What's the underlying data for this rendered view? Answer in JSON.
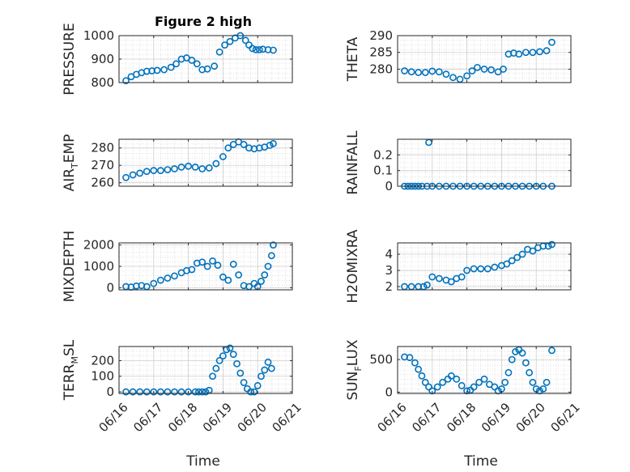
{
  "figure_title": "Figure 2 high",
  "x_tick_labels": [
    "06/16",
    "06/17",
    "06/18",
    "06/19",
    "06/20",
    "06/21"
  ],
  "x_label": "Time",
  "marker_color": "#0072BD",
  "chart_data": [
    {
      "type": "scatter",
      "name": "PRESSURE",
      "ylabel": {
        "main": "PRESSURE",
        "sub": ""
      },
      "title": "Figure 2 high",
      "xlim": [
        0,
        5
      ],
      "ylim": [
        800,
        1000
      ],
      "yticks": [
        800,
        900,
        1000
      ],
      "ytick_labels": [
        "800",
        "900",
        "1000"
      ],
      "grid": true,
      "x": [
        0.2,
        0.35,
        0.5,
        0.65,
        0.8,
        0.95,
        1.1,
        1.3,
        1.5,
        1.65,
        1.8,
        1.95,
        2.1,
        2.25,
        2.4,
        2.55,
        2.75,
        2.9,
        3.05,
        3.2,
        3.35,
        3.5,
        3.65,
        3.75,
        3.85,
        3.95,
        4.05,
        4.15,
        4.3,
        4.45
      ],
      "y": [
        808,
        825,
        835,
        842,
        848,
        850,
        852,
        855,
        865,
        880,
        900,
        905,
        895,
        880,
        855,
        858,
        870,
        930,
        960,
        975,
        990,
        1000,
        980,
        960,
        945,
        940,
        940,
        942,
        940,
        938
      ]
    },
    {
      "type": "scatter",
      "name": "THETA",
      "ylabel": {
        "main": "THETA",
        "sub": ""
      },
      "xlim": [
        0,
        5
      ],
      "ylim": [
        276,
        290
      ],
      "yticks": [
        280,
        285,
        290
      ],
      "ytick_labels": [
        "280",
        "285",
        "290"
      ],
      "grid": true,
      "x": [
        0.2,
        0.4,
        0.6,
        0.8,
        1.0,
        1.2,
        1.4,
        1.6,
        1.8,
        2.0,
        2.15,
        2.3,
        2.5,
        2.7,
        2.9,
        3.05,
        3.2,
        3.35,
        3.5,
        3.7,
        3.9,
        4.1,
        4.3,
        4.45
      ],
      "y": [
        279.5,
        279.2,
        279.0,
        279.0,
        279.4,
        279.2,
        278.5,
        277.5,
        277.0,
        278.0,
        279.5,
        280.5,
        280.0,
        279.8,
        279.2,
        280.0,
        284.5,
        284.8,
        284.5,
        285.0,
        285.0,
        285.2,
        285.5,
        288.0
      ]
    },
    {
      "type": "scatter",
      "name": "AIR_TEMP",
      "ylabel": {
        "main": "AIR",
        "sub": "T",
        "rest": "EMP"
      },
      "xlim": [
        0,
        5
      ],
      "ylim": [
        258,
        285
      ],
      "yticks": [
        260,
        270,
        280
      ],
      "ytick_labels": [
        "260",
        "270",
        "280"
      ],
      "grid": true,
      "x": [
        0.2,
        0.4,
        0.6,
        0.8,
        1.0,
        1.2,
        1.4,
        1.6,
        1.8,
        2.0,
        2.2,
        2.4,
        2.6,
        2.8,
        3.0,
        3.15,
        3.3,
        3.45,
        3.6,
        3.75,
        3.9,
        4.05,
        4.2,
        4.35,
        4.45
      ],
      "y": [
        263,
        264.5,
        265.5,
        266.5,
        267,
        267,
        267.5,
        268,
        269,
        269.5,
        269,
        268,
        268.5,
        271,
        275,
        280,
        282,
        283.5,
        282,
        280,
        279.5,
        280,
        280.5,
        281.5,
        282.5
      ]
    },
    {
      "type": "scatter",
      "name": "RAINFALL",
      "ylabel": {
        "main": "RAINFALL",
        "sub": ""
      },
      "xlim": [
        0,
        5
      ],
      "ylim": [
        0,
        0.3
      ],
      "yticks": [
        0,
        0.1,
        0.2
      ],
      "ytick_labels": [
        "0",
        "0.1",
        "0.2"
      ],
      "grid": true,
      "x": [
        0.2,
        0.3,
        0.4,
        0.5,
        0.6,
        0.7,
        0.85,
        0.9,
        1.0,
        1.2,
        1.4,
        1.6,
        1.8,
        2.0,
        2.2,
        2.4,
        2.6,
        2.8,
        3.0,
        3.2,
        3.4,
        3.6,
        3.8,
        4.0,
        4.2,
        4.45
      ],
      "y": [
        0,
        0,
        0,
        0,
        0,
        0,
        0,
        0.28,
        0,
        0,
        0,
        0,
        0,
        0,
        0,
        0,
        0,
        0,
        0,
        0,
        0,
        0,
        0,
        0,
        0,
        0
      ]
    },
    {
      "type": "scatter",
      "name": "MIXDEPTH",
      "ylabel": {
        "main": "MIXDEPTH",
        "sub": ""
      },
      "xlim": [
        0,
        5
      ],
      "ylim": [
        -100,
        2100
      ],
      "yticks": [
        0,
        1000,
        2000
      ],
      "ytick_labels": [
        "0",
        "1000",
        "2000"
      ],
      "grid": true,
      "x": [
        0.2,
        0.35,
        0.5,
        0.65,
        0.8,
        1.0,
        1.2,
        1.4,
        1.6,
        1.8,
        1.95,
        2.1,
        2.25,
        2.4,
        2.55,
        2.7,
        2.85,
        3.0,
        3.15,
        3.3,
        3.45,
        3.6,
        3.75,
        3.9,
        4.0,
        4.1,
        4.2,
        4.3,
        4.4,
        4.45
      ],
      "y": [
        50,
        30,
        80,
        100,
        50,
        200,
        350,
        450,
        550,
        700,
        800,
        850,
        1150,
        1200,
        1000,
        1250,
        1050,
        500,
        350,
        1100,
        600,
        100,
        50,
        200,
        50,
        300,
        600,
        1000,
        1500,
        2000
      ]
    },
    {
      "type": "scatter",
      "name": "H2OMIXRA",
      "ylabel": {
        "main": "H2OMIXRA",
        "sub": ""
      },
      "xlim": [
        0,
        5
      ],
      "ylim": [
        1.8,
        4.7
      ],
      "yticks": [
        2,
        3,
        4
      ],
      "ytick_labels": [
        "2",
        "3",
        "4"
      ],
      "grid": true,
      "x": [
        0.2,
        0.4,
        0.6,
        0.75,
        0.85,
        1.0,
        1.2,
        1.4,
        1.55,
        1.7,
        1.85,
        2.0,
        2.2,
        2.4,
        2.6,
        2.8,
        3.0,
        3.15,
        3.3,
        3.45,
        3.6,
        3.75,
        3.9,
        4.05,
        4.2,
        4.35,
        4.45
      ],
      "y": [
        2.0,
        2.0,
        2.0,
        2.0,
        2.1,
        2.6,
        2.5,
        2.4,
        2.3,
        2.5,
        2.6,
        3.0,
        3.1,
        3.1,
        3.1,
        3.2,
        3.3,
        3.4,
        3.6,
        3.8,
        4.0,
        4.3,
        4.2,
        4.4,
        4.5,
        4.5,
        4.6
      ]
    },
    {
      "type": "scatter",
      "name": "TERR_MSL",
      "ylabel": {
        "main": "TERR",
        "sub": "M",
        "rest": "SL"
      },
      "xlim": [
        0,
        5
      ],
      "ylim": [
        -10,
        290
      ],
      "yticks": [
        0,
        100,
        200
      ],
      "ytick_labels": [
        "0",
        "100",
        "200"
      ],
      "grid": true,
      "x": [
        0.2,
        0.4,
        0.6,
        0.8,
        1.0,
        1.2,
        1.4,
        1.6,
        1.8,
        2.0,
        2.2,
        2.3,
        2.4,
        2.5,
        2.6,
        2.7,
        2.8,
        2.9,
        3.0,
        3.1,
        3.2,
        3.3,
        3.4,
        3.5,
        3.6,
        3.7,
        3.8,
        3.9,
        4.0,
        4.1,
        4.2,
        4.3,
        4.4
      ],
      "y": [
        0,
        0,
        0,
        0,
        0,
        0,
        0,
        0,
        0,
        0,
        0,
        0,
        0,
        0,
        10,
        100,
        150,
        200,
        230,
        270,
        280,
        240,
        180,
        120,
        60,
        20,
        0,
        0,
        40,
        100,
        140,
        190,
        150
      ]
    },
    {
      "type": "scatter",
      "name": "SUN_FLUX",
      "ylabel": {
        "main": "SUN",
        "sub": "F",
        "rest": "LUX"
      },
      "xlim": [
        0,
        5
      ],
      "ylim": [
        -20,
        700
      ],
      "yticks": [
        0,
        500
      ],
      "ytick_labels": [
        "0",
        "500"
      ],
      "grid": true,
      "x": [
        0.2,
        0.35,
        0.5,
        0.6,
        0.7,
        0.8,
        0.9,
        1.0,
        1.15,
        1.3,
        1.45,
        1.55,
        1.7,
        1.85,
        2.0,
        2.1,
        2.2,
        2.35,
        2.5,
        2.65,
        2.8,
        2.9,
        3.0,
        3.1,
        3.2,
        3.3,
        3.4,
        3.5,
        3.6,
        3.7,
        3.8,
        3.9,
        4.0,
        4.1,
        4.2,
        4.3,
        4.45
      ],
      "y": [
        540,
        530,
        450,
        350,
        250,
        150,
        80,
        20,
        80,
        150,
        200,
        250,
        200,
        100,
        20,
        30,
        80,
        150,
        200,
        120,
        80,
        20,
        50,
        150,
        300,
        500,
        620,
        650,
        600,
        450,
        300,
        150,
        50,
        20,
        50,
        150,
        640
      ]
    }
  ]
}
